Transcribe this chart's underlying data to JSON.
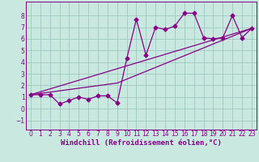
{
  "background_color": "#c8e8e0",
  "grid_color": "#a0c8c0",
  "line_color": "#880088",
  "spine_color": "#880088",
  "xlim": [
    -0.5,
    23.5
  ],
  "ylim": [
    -1.8,
    9.2
  ],
  "xticks": [
    0,
    1,
    2,
    3,
    4,
    5,
    6,
    7,
    8,
    9,
    10,
    11,
    12,
    13,
    14,
    15,
    16,
    17,
    18,
    19,
    20,
    21,
    22,
    23
  ],
  "yticks": [
    -1,
    0,
    1,
    2,
    3,
    4,
    5,
    6,
    7,
    8
  ],
  "xlabel": "Windchill (Refroidissement éolien,°C)",
  "series1_x": [
    0,
    1,
    2,
    3,
    4,
    5,
    6,
    7,
    8,
    9,
    10,
    11,
    12,
    13,
    14,
    15,
    16,
    17,
    18,
    19,
    20,
    21,
    22,
    23
  ],
  "series1_y": [
    1.2,
    1.2,
    1.2,
    0.4,
    0.7,
    1.0,
    0.8,
    1.1,
    1.1,
    0.5,
    4.3,
    7.7,
    4.6,
    7.0,
    6.8,
    7.1,
    8.2,
    8.2,
    6.1,
    6.0,
    6.1,
    8.0,
    6.1,
    6.9
  ],
  "series2_x": [
    0,
    23
  ],
  "series2_y": [
    1.2,
    6.9
  ],
  "series3_x": [
    0,
    9,
    23
  ],
  "series3_y": [
    1.2,
    2.2,
    6.9
  ],
  "tick_fontsize": 5.5,
  "xlabel_fontsize": 6.5,
  "marker_size": 2.5,
  "line_width": 0.9
}
